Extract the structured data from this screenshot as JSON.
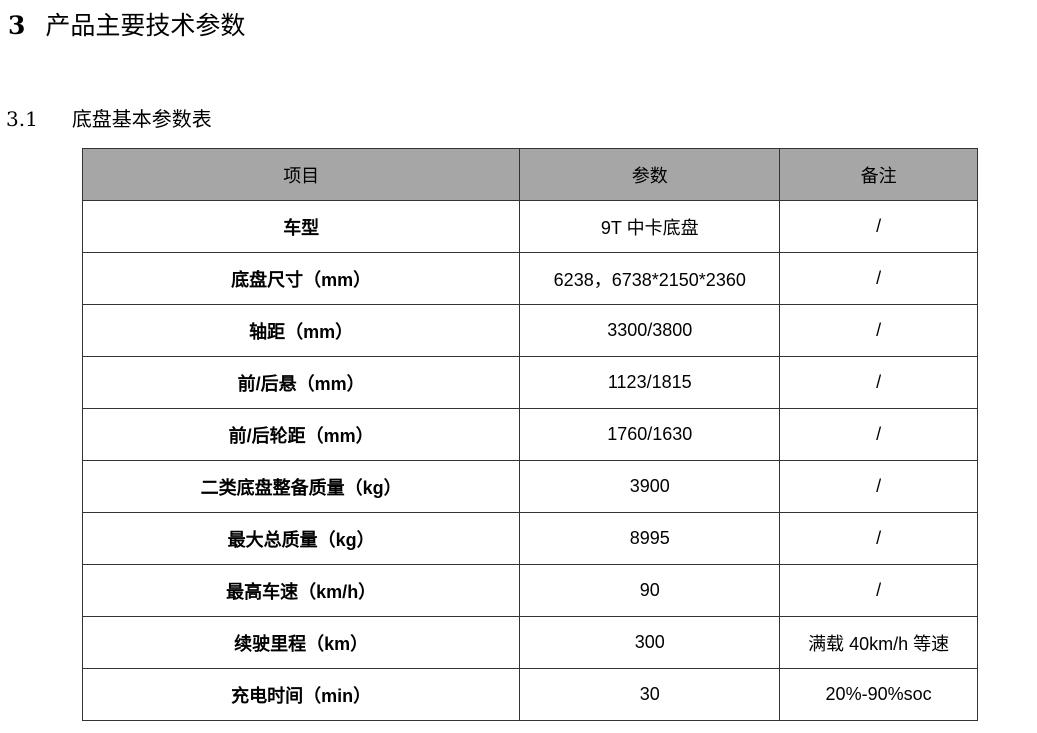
{
  "heading": {
    "number": "3",
    "title": "产品主要技术参数"
  },
  "subheading": {
    "number": "3.1",
    "title": "底盘基本参数表"
  },
  "table": {
    "headers": [
      "项目",
      "参数",
      "备注"
    ],
    "rows": [
      [
        "车型",
        "9T 中卡底盘",
        "/"
      ],
      [
        "底盘尺寸（mm）",
        "6238，6738*2150*2360",
        "/"
      ],
      [
        "轴距（mm）",
        "3300/3800",
        "/"
      ],
      [
        "前/后悬（mm）",
        "1123/1815",
        "/"
      ],
      [
        "前/后轮距（mm）",
        "1760/1630",
        "/"
      ],
      [
        "二类底盘整备质量（kg）",
        "3900",
        "/"
      ],
      [
        "最大总质量（kg）",
        "8995",
        "/"
      ],
      [
        "最高车速（km/h）",
        "90",
        "/"
      ],
      [
        "续驶里程（km）",
        "300",
        "满载 40km/h 等速"
      ],
      [
        "充电时间（min）",
        "30",
        "20%-90%soc"
      ]
    ]
  }
}
